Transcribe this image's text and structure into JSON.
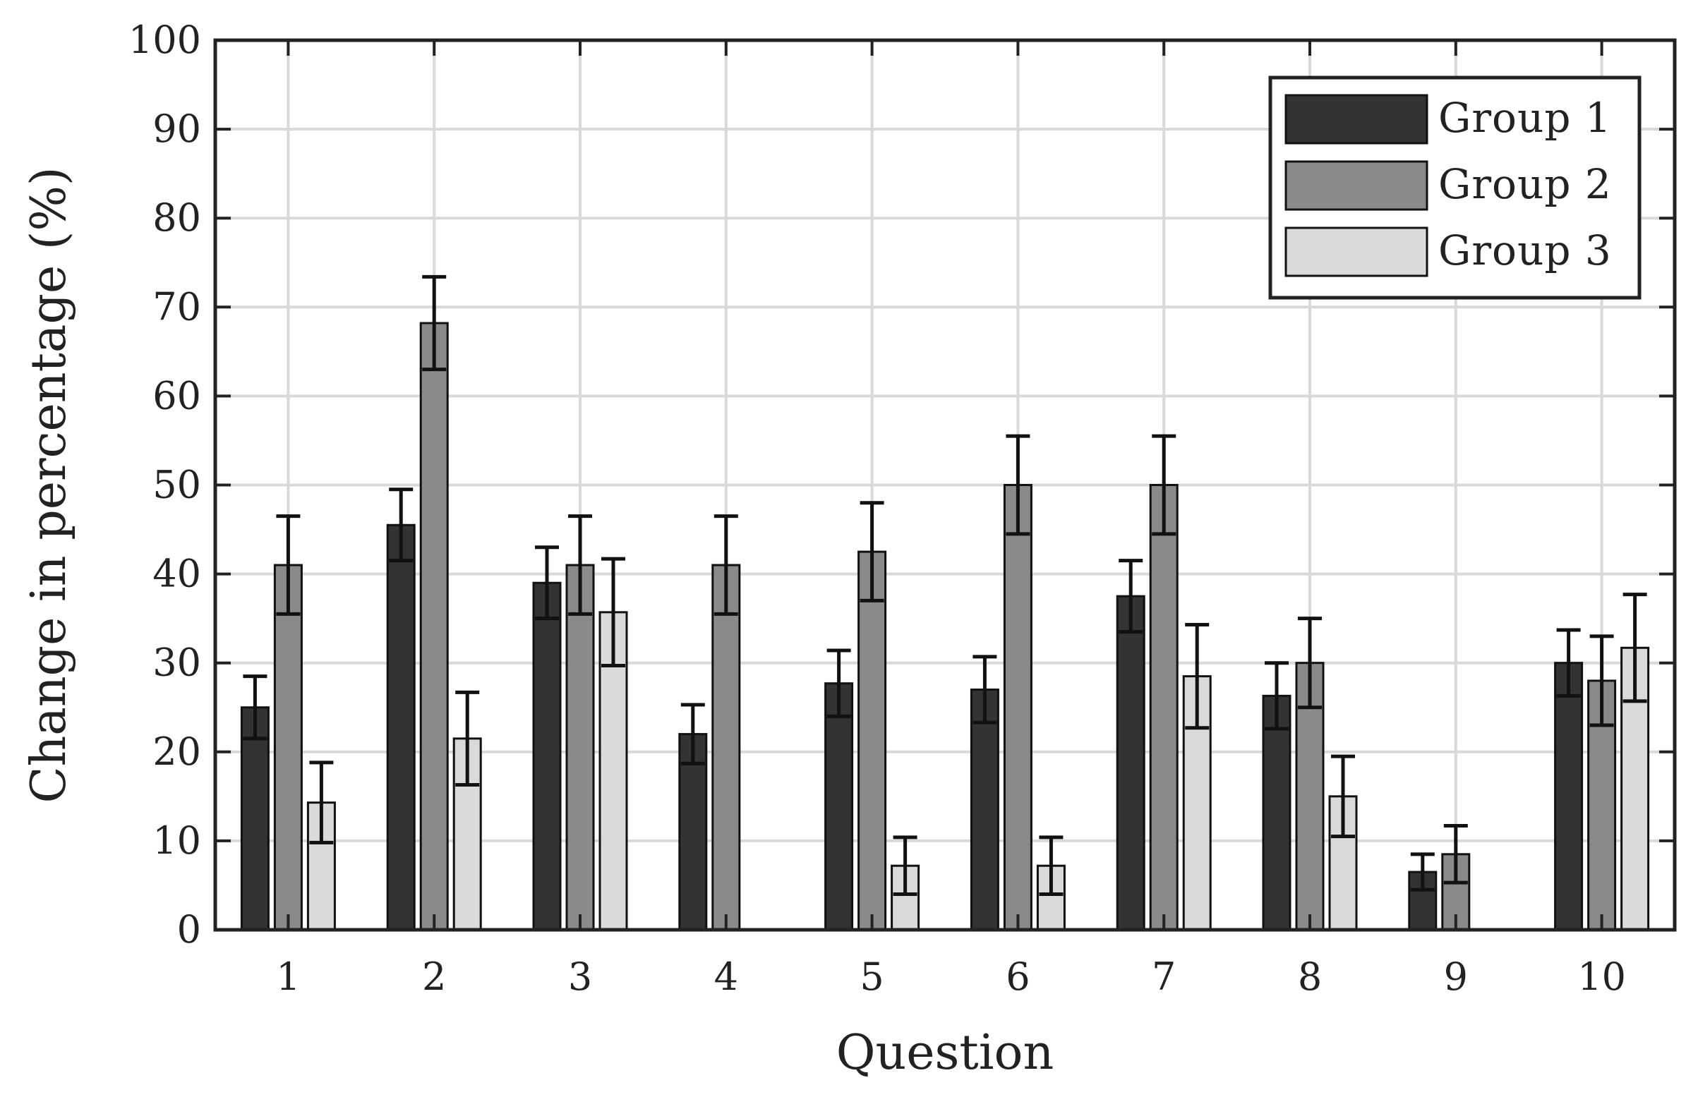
{
  "chart_data": {
    "type": "bar",
    "xlabel": "Question",
    "ylabel": "Change in percentage (%)",
    "ylim": [
      0,
      100
    ],
    "yticks": [
      0,
      10,
      20,
      30,
      40,
      50,
      60,
      70,
      80,
      90,
      100
    ],
    "categories": [
      "1",
      "2",
      "3",
      "4",
      "5",
      "6",
      "7",
      "8",
      "9",
      "10"
    ],
    "grid": true,
    "legend_position": "top-right",
    "series": [
      {
        "name": "Group 1",
        "color": "#333333",
        "values": [
          25.0,
          45.5,
          39.0,
          22.0,
          27.7,
          27.0,
          37.5,
          26.3,
          6.5,
          30.0
        ],
        "errors": [
          3.5,
          4.0,
          4.0,
          3.3,
          3.7,
          3.7,
          4.0,
          3.7,
          2.0,
          3.7
        ]
      },
      {
        "name": "Group 2",
        "color": "#8a8a8a",
        "values": [
          41.0,
          68.2,
          41.0,
          41.0,
          42.5,
          50.0,
          50.0,
          30.0,
          8.5,
          28.0
        ],
        "errors": [
          5.5,
          5.2,
          5.5,
          5.5,
          5.5,
          5.5,
          5.5,
          5.0,
          3.2,
          5.0
        ]
      },
      {
        "name": "Group 3",
        "color": "#dadada",
        "values": [
          14.3,
          21.5,
          35.7,
          0,
          7.2,
          7.2,
          28.5,
          15.0,
          0,
          31.7
        ],
        "errors": [
          4.5,
          5.2,
          6.0,
          0,
          3.2,
          3.2,
          5.8,
          4.5,
          0,
          6.0
        ]
      }
    ]
  }
}
